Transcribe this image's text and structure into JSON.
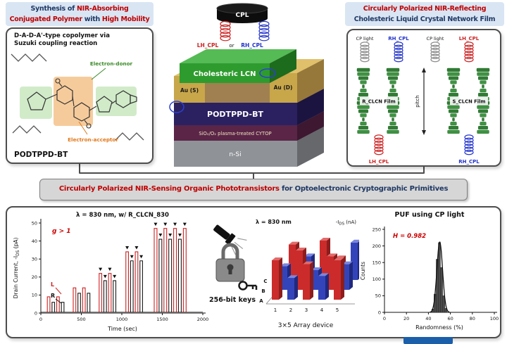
{
  "colors": {
    "accent_red": "#c00000",
    "accent_navy": "#1f3864",
    "cpl_red": "#cc2222",
    "cpl_blue": "#2233cc",
    "cp_gray": "#8a8a8a",
    "lcn_green": "#2e9b2e",
    "gold": "#c8a64a",
    "osc_navy": "#2b2160",
    "cytop_maroon": "#5a2547",
    "silicon_gray": "#8f9296",
    "bar_red": "#cc2b2b",
    "bar_blue": "#3344bb"
  },
  "top_left": {
    "title_l1_a": "Synthesis of ",
    "title_l1_b": "NIR-Absorbing",
    "title_l2_a": "Conjugated Polymer",
    "title_l2_b": " with ",
    "title_l2_c": "High Mobility",
    "subtitle_l1": "D-A-D-A'-type copolymer via",
    "subtitle_l2": "Suzuki coupling reaction",
    "donor_label": "Electron-donor",
    "acceptor_label": "Electron-acceptor",
    "polymer_name": "PODTPPD-BT"
  },
  "device": {
    "cpl": "CPL",
    "lh": "LH_CPL",
    "or": "or",
    "rh": "RH_CPL",
    "layers": {
      "lcn": "Cholesteric LCN",
      "au_s": "Au (S)",
      "au_d": "Au (D)",
      "osc": "PODTPPD-BT",
      "dielectric": "SiO₂/O₂ plasma-treated CYTOP",
      "substrate": "n-Si"
    }
  },
  "top_right": {
    "title_l1": "Circularly Polarized NIR-Reflecting",
    "title_l2": "Cholesteric Liquid Crystal Network Film",
    "cp_light_1": "CP light",
    "rh_top": "RH_CPL",
    "cp_light_2": "CP light",
    "lh_top": "LH_CPL",
    "r_film": "R_CLCN Film",
    "s_film": "S_CLCN Film",
    "pitch": "pitch",
    "lh_bottom": "LH_CPL",
    "rh_bottom": "RH_CPL"
  },
  "banner": {
    "part1": "Circularly Polarized NIR-Sensing Organic Phototransistors",
    "part2": " for Optoelectronic Cryptographic Primitives"
  },
  "bottom": {
    "keys_label": "256-bit keys",
    "array_caption": "3×5 Array device"
  },
  "chart_data": [
    {
      "type": "line",
      "title": "λ = 830 nm, w/ R_CLCN_830",
      "ylabel_prefix": "Drain Current, -I",
      "ylabel_sub": "DS",
      "ylabel_suffix": " (pA)",
      "xlabel": "Time (sec)",
      "annotation_g": "g > 1",
      "label_L": "L",
      "label_R": "R",
      "xlim": [
        0,
        2000
      ],
      "ylim": [
        0,
        50
      ],
      "xticks": [
        0,
        500,
        1000,
        1500,
        2000
      ],
      "yticks": [
        0,
        10,
        20,
        30,
        40,
        50
      ],
      "pulse_groups": [
        {
          "t_start": 80,
          "n": 4,
          "pw": 32,
          "gap": 26,
          "height_L": 9,
          "height_R": 6
        },
        {
          "t_start": 400,
          "n": 4,
          "pw": 32,
          "gap": 26,
          "height_L": 14,
          "height_R": 11
        },
        {
          "t_start": 720,
          "n": 4,
          "pw": 32,
          "gap": 26,
          "height_L": 22,
          "height_R": 18
        },
        {
          "t_start": 1050,
          "n": 4,
          "pw": 32,
          "gap": 26,
          "height_L": 34,
          "height_R": 29
        },
        {
          "t_start": 1400,
          "n": 7,
          "pw": 34,
          "gap": 26,
          "height_L": 47,
          "height_R": 41
        }
      ]
    },
    {
      "type": "bar3d",
      "title": "λ = 830 nm",
      "zlabel_prefix": "-I",
      "zlabel_sub": "DS",
      "zlabel_suffix": " (nA)",
      "rows": [
        "A",
        "B",
        "C"
      ],
      "cols": [
        "1",
        "2",
        "3",
        "4",
        "5"
      ],
      "cells": [
        [
          {
            "k": "R",
            "h": 1.0
          },
          {
            "k": "B",
            "h": 0.55
          },
          {
            "k": "R",
            "h": 0.9
          },
          {
            "k": "B",
            "h": 0.6
          },
          {
            "k": "R",
            "h": 1.0
          }
        ],
        [
          {
            "k": "B",
            "h": 0.6
          },
          {
            "k": "R",
            "h": 1.0
          },
          {
            "k": "B",
            "h": 0.5
          },
          {
            "k": "R",
            "h": 0.85
          },
          {
            "k": "B",
            "h": 0.65
          }
        ],
        [
          {
            "k": "R",
            "h": 0.9
          },
          {
            "k": "B",
            "h": 0.6
          },
          {
            "k": "R",
            "h": 1.0
          },
          {
            "k": "R",
            "h": 0.55
          },
          {
            "k": "B",
            "h": 0.95
          }
        ]
      ]
    },
    {
      "type": "bar",
      "title": "PUF using CP light",
      "annotation": "H = 0.982",
      "xlabel": "Randomness (%)",
      "ylabel": "Counts",
      "xlim": [
        0,
        100
      ],
      "ylim": [
        0,
        250
      ],
      "xticks": [
        0,
        20,
        40,
        60,
        80,
        100
      ],
      "yticks": [
        0,
        50,
        100,
        150,
        200,
        250
      ],
      "bins": [
        44,
        46,
        48,
        50,
        52,
        54,
        56
      ],
      "counts": [
        10,
        55,
        160,
        210,
        135,
        50,
        12
      ],
      "fit": {
        "type": "gaussian",
        "mu": 50.3,
        "sigma": 2.6,
        "amp": 212
      }
    }
  ]
}
